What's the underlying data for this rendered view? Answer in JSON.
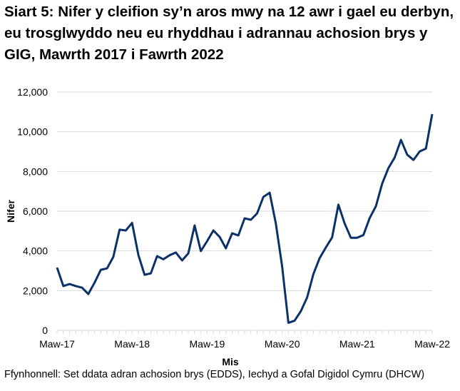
{
  "chart_data": {
    "type": "line",
    "title": "Siart 5: Nifer y cleifion sy’n aros mwy na 12 awr i gael eu derbyn, eu trosglwyddo neu eu rhyddhau i adrannau achosion brys y GIG, Mawrth 2017 i Fawrth 2022",
    "xlabel": "Mis",
    "ylabel": "Nifer",
    "ylim": [
      0,
      12000
    ],
    "yticks": [
      0,
      2000,
      4000,
      6000,
      8000,
      10000,
      12000
    ],
    "ytick_labels": [
      "0",
      "2,000",
      "4,000",
      "6,000",
      "8,000",
      "10,000",
      "12,000"
    ],
    "xtick_labels": [
      "Maw-17",
      "Maw-18",
      "Maw-19",
      "Maw-20",
      "Maw-21",
      "Maw-22"
    ],
    "x_start": "2017-03",
    "x_end": "2022-03",
    "grid": "horizontal",
    "line_color": "#0b3168",
    "series": [
      {
        "values": [
          3160,
          2230,
          2330,
          2230,
          2150,
          1830,
          2400,
          3050,
          3120,
          3700,
          5070,
          5030,
          5410,
          3800,
          2800,
          2870,
          3740,
          3580,
          3780,
          3920,
          3520,
          3880,
          5280,
          3990,
          4490,
          5030,
          4710,
          4130,
          4890,
          4780,
          5640,
          5570,
          5890,
          6720,
          6930,
          5380,
          3220,
          380,
          490,
          970,
          1660,
          2830,
          3640,
          4180,
          4680,
          6330,
          5380,
          4660,
          4660,
          4800,
          5650,
          6250,
          7390,
          8170,
          8700,
          9590,
          8850,
          8580,
          9010,
          9150,
          10890
        ]
      }
    ]
  },
  "source": "Ffynhonnell: Set ddata adran achosion brys (EDDS), Iechyd a Gofal Digidol Cymru (DHCW)"
}
